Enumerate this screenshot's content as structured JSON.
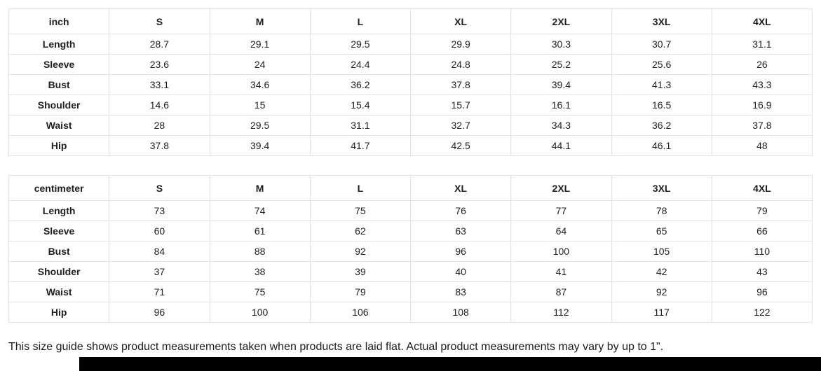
{
  "tables": [
    {
      "unit_label": "inch",
      "size_headers": [
        "S",
        "M",
        "L",
        "XL",
        "2XL",
        "3XL",
        "4XL"
      ],
      "rows": [
        {
          "label": "Length",
          "values": [
            "28.7",
            "29.1",
            "29.5",
            "29.9",
            "30.3",
            "30.7",
            "31.1"
          ]
        },
        {
          "label": "Sleeve",
          "values": [
            "23.6",
            "24",
            "24.4",
            "24.8",
            "25.2",
            "25.6",
            "26"
          ]
        },
        {
          "label": "Bust",
          "values": [
            "33.1",
            "34.6",
            "36.2",
            "37.8",
            "39.4",
            "41.3",
            "43.3"
          ]
        },
        {
          "label": "Shoulder",
          "values": [
            "14.6",
            "15",
            "15.4",
            "15.7",
            "16.1",
            "16.5",
            "16.9"
          ]
        },
        {
          "label": "Waist",
          "values": [
            "28",
            "29.5",
            "31.1",
            "32.7",
            "34.3",
            "36.2",
            "37.8"
          ]
        },
        {
          "label": "Hip",
          "values": [
            "37.8",
            "39.4",
            "41.7",
            "42.5",
            "44.1",
            "46.1",
            "48"
          ]
        }
      ]
    },
    {
      "unit_label": "centimeter",
      "size_headers": [
        "S",
        "M",
        "L",
        "XL",
        "2XL",
        "3XL",
        "4XL"
      ],
      "rows": [
        {
          "label": "Length",
          "values": [
            "73",
            "74",
            "75",
            "76",
            "77",
            "78",
            "79"
          ]
        },
        {
          "label": "Sleeve",
          "values": [
            "60",
            "61",
            "62",
            "63",
            "64",
            "65",
            "66"
          ]
        },
        {
          "label": "Bust",
          "values": [
            "84",
            "88",
            "92",
            "96",
            "100",
            "105",
            "110"
          ]
        },
        {
          "label": "Shoulder",
          "values": [
            "37",
            "38",
            "39",
            "40",
            "41",
            "42",
            "43"
          ]
        },
        {
          "label": "Waist",
          "values": [
            "71",
            "75",
            "79",
            "83",
            "87",
            "92",
            "96"
          ]
        },
        {
          "label": "Hip",
          "values": [
            "96",
            "100",
            "106",
            "108",
            "112",
            "117",
            "122"
          ]
        }
      ]
    }
  ],
  "footer_note": "This size guide shows product measurements taken when products are laid flat. Actual product measurements may vary by up to 1\".",
  "colors": {
    "border": "#e2e2e2",
    "text": "#202020",
    "bottom_bar": "#000000"
  }
}
